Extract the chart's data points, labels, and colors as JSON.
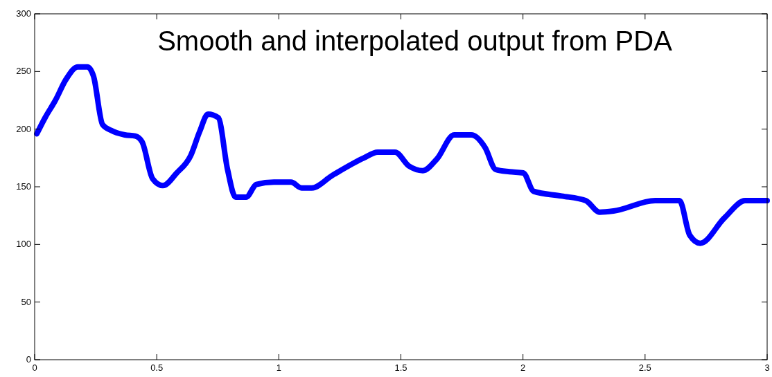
{
  "chart_data": {
    "type": "line",
    "title": "Smooth and interpolated output from PDA",
    "xlim": [
      0,
      3
    ],
    "ylim": [
      0,
      300
    ],
    "xticks": [
      0,
      0.5,
      1,
      1.5,
      2,
      2.5,
      3
    ],
    "yticks": [
      0,
      50,
      100,
      150,
      200,
      250,
      300
    ],
    "grid": false,
    "marker": "none",
    "line_style": "solid",
    "series": [
      {
        "color": "#0000ff",
        "x": [
          0.009,
          0.043,
          0.085,
          0.128,
          0.176,
          0.216,
          0.241,
          0.278,
          0.312,
          0.369,
          0.412,
          0.44,
          0.483,
          0.525,
          0.582,
          0.639,
          0.676,
          0.71,
          0.752,
          0.79,
          0.823,
          0.866,
          0.908,
          0.98,
          1.05,
          1.093,
          1.135,
          1.22,
          1.348,
          1.405,
          1.476,
          1.533,
          1.59,
          1.647,
          1.718,
          1.788,
          1.845,
          1.888,
          1.945,
          2.001,
          2.044,
          2.158,
          2.257,
          2.314,
          2.371,
          2.541,
          2.641,
          2.683,
          2.726,
          2.825,
          2.91,
          3.0
        ],
        "values": [
          196,
          210,
          225,
          243,
          254,
          254,
          246,
          204,
          199,
          195,
          194,
          189,
          157,
          151,
          162,
          177,
          198,
          213,
          210,
          165,
          141,
          141,
          152,
          154,
          154,
          149,
          149,
          160,
          175,
          180,
          180,
          168,
          164,
          174,
          195,
          195,
          184,
          165,
          163,
          162,
          146,
          142,
          138,
          128,
          129,
          138,
          138,
          108,
          101,
          123,
          138,
          138
        ]
      }
    ]
  }
}
